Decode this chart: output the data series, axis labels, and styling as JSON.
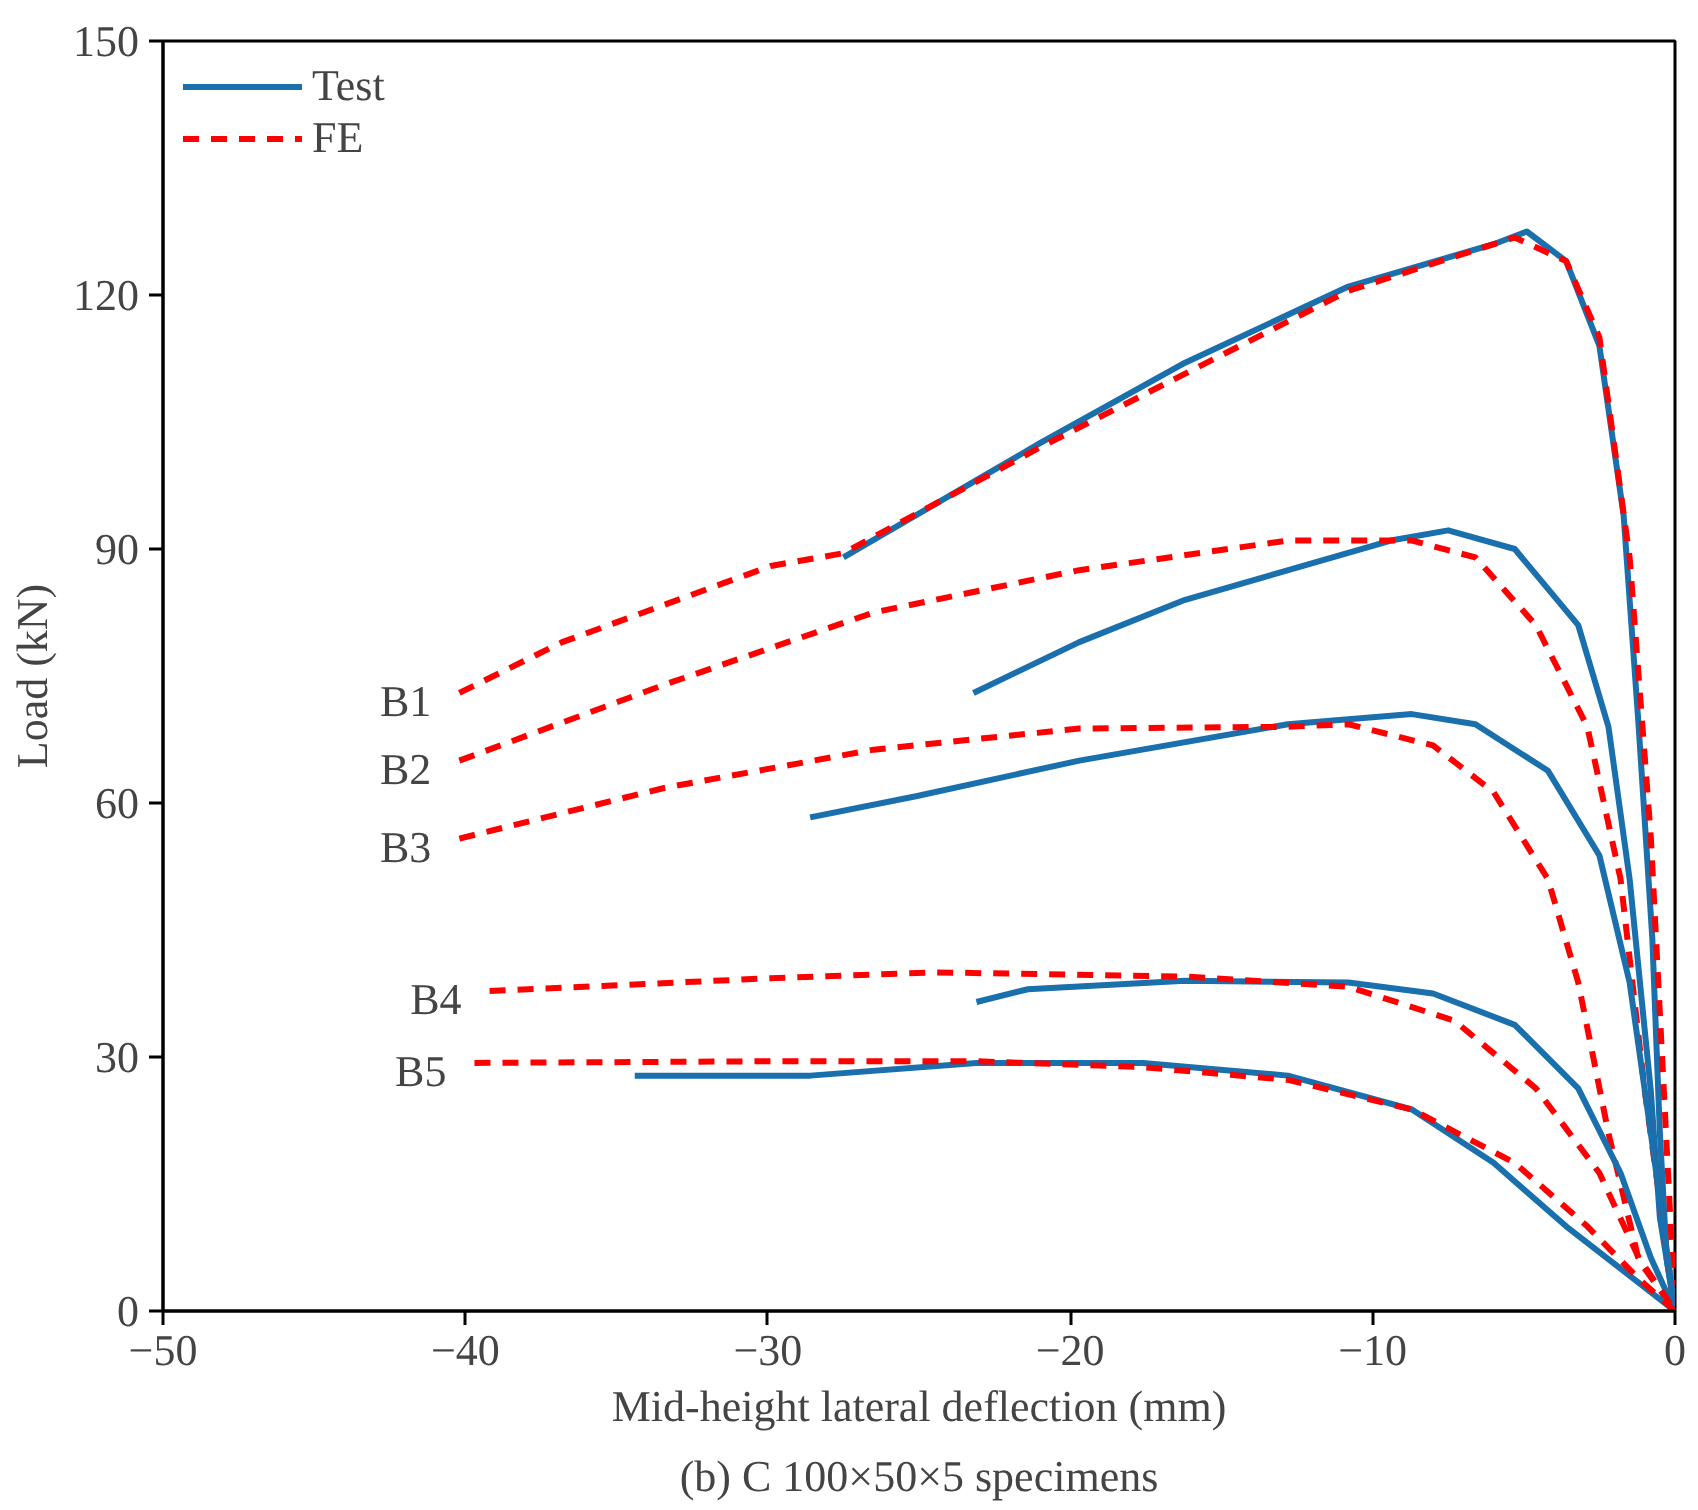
{
  "chart_data": {
    "type": "line",
    "title": "(b) C 100×50×5 specimens",
    "xlabel": "Mid-height lateral deflection (mm)",
    "ylabel": "Load (kN)",
    "xlim": [
      -50,
      0
    ],
    "xticks": [
      -50,
      -40,
      -30,
      -20,
      -10,
      0
    ],
    "ylim": [
      0,
      150
    ],
    "yticks": [
      0,
      30,
      60,
      90,
      120,
      150
    ],
    "grid": false,
    "legend": "top left",
    "annotations": [
      "B1",
      "B2",
      "B3",
      "B4",
      "B5"
    ],
    "series": [
      {
        "name": "Test",
        "color": "#1a6fad",
        "line_style": "solid",
        "x": [
          -27.5,
          -21,
          -16.2,
          -10.8,
          -6,
          -4.9,
          -3.6,
          -2.5,
          -1.7,
          -1.2,
          -0.75,
          -0.5,
          -0.27,
          0
        ],
        "values": [
          89,
          102.5,
          112,
          121,
          126,
          127.5,
          124,
          114,
          94,
          69,
          44,
          21,
          6,
          0
        ]
      },
      {
        "name": "FE",
        "color": "#ff0000",
        "line_style": "dashed",
        "x": [
          -40.2,
          -36.8,
          -29.9,
          -27.5,
          -21,
          -10.8,
          -5.3,
          -3.6,
          -2.5,
          -1.5,
          -0.8,
          -0.34,
          0
        ],
        "values": [
          73,
          79,
          88,
          89.5,
          102,
          120.5,
          126.8,
          124,
          115,
          89,
          56,
          24,
          0
        ]
      },
      {
        "color": "#1a6fad",
        "line_style": "solid",
        "x": [
          -23.2,
          -19.7,
          -16.2,
          -9.4,
          -7.5,
          -5.3,
          -3.2,
          -2.2,
          -1.5,
          -0.8,
          -0.5,
          0
        ],
        "values": [
          73,
          79,
          84,
          91,
          92.2,
          90,
          81,
          69,
          51,
          26,
          11,
          0
        ]
      },
      {
        "color": "#ff0000",
        "line_style": "dashed",
        "x": [
          -40.2,
          -33.4,
          -26.5,
          -19.7,
          -12.8,
          -8.7,
          -6.6,
          -4.6,
          -2.9,
          -1.8,
          -1,
          0
        ],
        "values": [
          65,
          74,
          82.5,
          87.5,
          91,
          91,
          89,
          81,
          69,
          51,
          26,
          0
        ]
      },
      {
        "color": "#1a6fad",
        "line_style": "solid",
        "x": [
          -28.6,
          -25.1,
          -19.7,
          -12.8,
          -8.7,
          -6.6,
          -4.2,
          -2.5,
          -1.5,
          -0.8,
          0
        ],
        "values": [
          58.3,
          60.8,
          65,
          69.3,
          70.5,
          69.3,
          63.8,
          53.8,
          38.8,
          21,
          0
        ]
      },
      {
        "color": "#ff0000",
        "line_style": "dashed",
        "x": [
          -40.2,
          -33.4,
          -26.5,
          -19.7,
          -12.8,
          -10.8,
          -8,
          -6,
          -4.2,
          -3.2,
          -2.2,
          -1.2,
          0
        ],
        "values": [
          55.8,
          61.8,
          66.3,
          68.8,
          69,
          69.3,
          66.8,
          61.3,
          51,
          38.8,
          21,
          6,
          0
        ]
      },
      {
        "color": "#1a6fad",
        "line_style": "solid",
        "x": [
          -23.1,
          -21.4,
          -16.2,
          -10.8,
          -8,
          -5.3,
          -3.2,
          -1.8,
          -0.8,
          0
        ],
        "values": [
          36.5,
          38,
          39,
          38.8,
          37.5,
          33.8,
          26.3,
          16.3,
          6.3,
          0
        ]
      },
      {
        "color": "#ff0000",
        "line_style": "dashed",
        "x": [
          -39.2,
          -29.9,
          -24.5,
          -16.2,
          -10.8,
          -7.3,
          -4.6,
          -2.5,
          -1.2,
          0
        ],
        "values": [
          37.8,
          39.3,
          40,
          39.5,
          38.3,
          34.3,
          26.3,
          16.3,
          6.3,
          0
        ]
      },
      {
        "color": "#1a6fad",
        "line_style": "solid",
        "x": [
          -34.4,
          -28.6,
          -23.1,
          -17.6,
          -12.8,
          -8.7,
          -6,
          -3.6,
          -1.8,
          0
        ],
        "values": [
          27.8,
          27.8,
          29.3,
          29.3,
          27.8,
          23.8,
          17.5,
          10,
          5,
          0
        ]
      },
      {
        "color": "#ff0000",
        "line_style": "dashed",
        "x": [
          -39.7,
          -29.9,
          -23.1,
          -17.6,
          -12.8,
          -8.7,
          -5.3,
          -2.9,
          -1.2,
          0
        ],
        "values": [
          29.3,
          29.5,
          29.5,
          28.8,
          27.3,
          23.8,
          17.5,
          10,
          3.8,
          0
        ]
      }
    ]
  }
}
